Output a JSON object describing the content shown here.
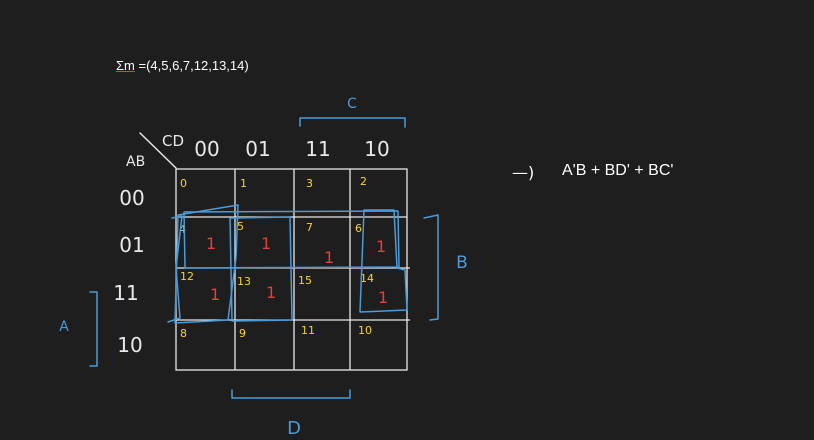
{
  "minterms_expression": {
    "prefix": "Σm",
    "rest": " =(4,5,6,7,12,13,14)"
  },
  "result": {
    "arrow": "—)",
    "expression": "A'B + BD' + BC'"
  },
  "kmap": {
    "corner_row_label": "AB",
    "corner_col_label": "CD",
    "col_headers": [
      "00",
      "01",
      "11",
      "10"
    ],
    "row_headers": [
      "00",
      "01",
      "11",
      "10"
    ],
    "cell_indices": [
      [
        "0",
        "1",
        "3",
        "2"
      ],
      [
        "4",
        "5",
        "7",
        "6"
      ],
      [
        "12",
        "13",
        "15",
        "14"
      ],
      [
        "8",
        "9",
        "11",
        "10"
      ]
    ],
    "cell_values": [
      [
        "",
        "",
        "",
        ""
      ],
      [
        "1",
        "1",
        "1",
        "1"
      ],
      [
        "1",
        "1",
        "",
        "1"
      ],
      [
        "",
        "",
        "",
        ""
      ]
    ],
    "label_c": "C",
    "label_a": "A",
    "label_b": "B",
    "label_d": "D"
  },
  "colors": {
    "background": "#1f1e1e",
    "grid": "#e8e8e8",
    "index": "#f2d43a",
    "value": "#e0413a",
    "group": "#4a9bd8",
    "text": "#ffffff"
  }
}
